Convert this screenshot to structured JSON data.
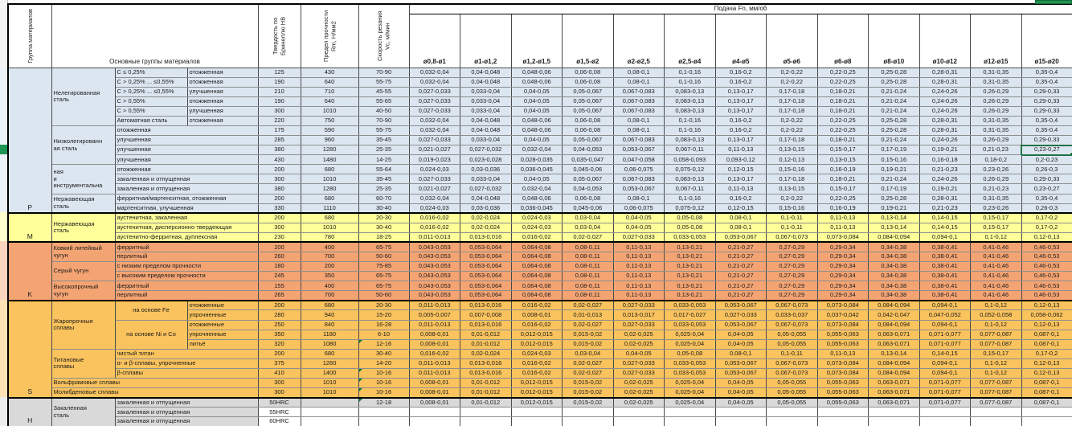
{
  "header": {
    "group_col": "Группа материалов",
    "materials_col": "Основные группы материалов",
    "hardness_col": "Твердость по Бринеллю HB",
    "strength_col": "Предел прочности Rm, Н/мм2",
    "speed_col": "Скорость резания Vc, м/мин",
    "feed_band": "Подача Fn, мм/об",
    "feed_cols": [
      "ø0,8-ø1",
      "ø1-ø1,2",
      "ø1,2-ø1,5",
      "ø1,5-ø2",
      "ø2-ø2,5",
      "ø2,5-ø4",
      "ø4-ø5",
      "ø5-ø6",
      "ø6-ø8",
      "ø8-ø10",
      "ø10-ø12",
      "ø12-ø15",
      "ø15-ø20"
    ]
  },
  "colors": {
    "selection_green": "#1F7245",
    "marker_green": "#0B7E3E",
    "highlight_green": "#1E9550"
  },
  "section_order": [
    "P",
    "M",
    "K",
    "S",
    "H"
  ],
  "sections": {
    "P": {
      "bg": "#DCE6F1",
      "strip": "#EDF2F9",
      "rows": 15
    },
    "M": {
      "bg": "#FFFF99",
      "strip": "#FFFFCF",
      "rows": 3
    },
    "K": {
      "bg": "#F4A473",
      "strip": "#FAD4BE",
      "rows": 6
    },
    "S": {
      "bg": "#FBC35D",
      "strip": "#FDE3B4",
      "rows": 10
    },
    "H": {
      "bg": "#D9D9D9",
      "strip": "#EDEDED",
      "rows": 3
    }
  },
  "feed_patterns": {
    "A": [
      "0,032-0,04",
      "0,04-0,048",
      "0,048-0,06",
      "0,06-0,08",
      "0,08-0,1",
      "0,1-0,16",
      "0,16-0,2",
      "0,2-0,22",
      "0,22-0,25",
      "0,25-0,28",
      "0,28-0,31",
      "0,31-0,35",
      "0,35-0,4"
    ],
    "B": [
      "0,027-0,033",
      "0,033-0,04",
      "0,04-0,05",
      "0,05-0,067",
      "0,067-0,083",
      "0,083-0,13",
      "0,13-0,17",
      "0,17-0,18",
      "0,18-0,21",
      "0,21-0,24",
      "0,24-0,26",
      "0,26-0,29",
      "0,29-0,33"
    ],
    "C": [
      "0,021-0,027",
      "0,027-0,032",
      "0,032-0,04",
      "0,04-0,053",
      "0,053-0,067",
      "0,067-0,11",
      "0,11-0,13",
      "0,13-0,15",
      "0,15-0,17",
      "0,17-0,19",
      "0,19-0,21",
      "0,21-0,23",
      "0,23-0,27"
    ],
    "D": [
      "0,019-0,023",
      "0,023-0,028",
      "0,028-0,035",
      "0,035-0,047",
      "0,047-0,058",
      "0,058-0,093",
      "0,093-0,12",
      "0,12-0,13",
      "0,13-0,15",
      "0,15-0,16",
      "0,16-0,18",
      "0,18-0,2",
      "0,2-0,23"
    ],
    "E": [
      "0,024-0,03",
      "0,03-0,036",
      "0,036-0,045",
      "0,045-0,06",
      "0,06-0,075",
      "0,075-0,12",
      "0,12-0,15",
      "0,15-0,16",
      "0,16-0,19",
      "0,19-0,21",
      "0,21-0,23",
      "0,23-0,26",
      "0,26-0,3"
    ],
    "F": [
      "0,016-0,02",
      "0,02-0,024",
      "0,024-0,03",
      "0,03-0,04",
      "0,04-0,05",
      "0,05-0,08",
      "0,08-0,1",
      "0,1-0,11",
      "0,11-0,13",
      "0,13-0,14",
      "0,14-0,15",
      "0,15-0,17",
      "0,17-0,2"
    ],
    "G": [
      "0,011-0,013",
      "0,013-0,016",
      "0,016-0,02",
      "0,02-0,027",
      "0,027-0,033",
      "0,033-0,053",
      "0,053-0,067",
      "0,067-0,073",
      "0,073-0,084",
      "0,084-0,094",
      "0,094-0,1",
      "0,1-0,12",
      "0,12-0,13"
    ],
    "H": [
      "0,043-0,053",
      "0,053-0,064",
      "0,064-0,08",
      "0,08-0,11",
      "0,11-0,13",
      "0,13-0,21",
      "0,21-0,27",
      "0,27-0,29",
      "0,29-0,34",
      "0,34-0,38",
      "0,38-0,41",
      "0,41-0,46",
      "0,46-0,53"
    ],
    "I": [
      "0,005-0,007",
      "0,007-0,008",
      "0,008-0,01",
      "0,01-0,013",
      "0,013-0,017",
      "0,017-0,027",
      "0,027-0,033",
      "0,033-0,037",
      "0,037-0,042",
      "0,042-0,047",
      "0,047-0,052",
      "0,052-0,058",
      "0,058-0,062"
    ],
    "J": [
      "0,008-0,01",
      "0,01-0,012",
      "0,012-0,015",
      "0,015-0,02",
      "0,02-0,025",
      "0,025-0,04",
      "0,04-0,05",
      "0,05-0,055",
      "0,055-0,063",
      "0,063-0,071",
      "0,071-0,077",
      "0,077-0,087",
      "0,087-0,1"
    ]
  },
  "rows": [
    {
      "s": "P",
      "labels": [
        {
          "t": "Нелегированная\nсталь",
          "rs": 6,
          "cls": "name"
        },
        {
          "t": "C ≤ 0,25%",
          "cls": "sub"
        },
        {
          "t": "отожженная",
          "cls": "sub"
        }
      ],
      "hb": "125",
      "rm": "430",
      "vc": "70-90",
      "fp": "A"
    },
    {
      "labels": [
        {
          "t": "C > 0,25% ... ≤0,55%",
          "cls": "sub"
        },
        {
          "t": "отожженная",
          "cls": "sub"
        }
      ],
      "hb": "190",
      "rm": "640",
      "vc": "55-75",
      "fp": "A"
    },
    {
      "labels": [
        {
          "t": "C > 0,25% ... ≤0,55%",
          "cls": "sub"
        },
        {
          "t": "улучшенная",
          "cls": "sub"
        }
      ],
      "hb": "210",
      "rm": "710",
      "vc": "45-55",
      "fp": "B"
    },
    {
      "labels": [
        {
          "t": "C > 0,55%",
          "cls": "sub"
        },
        {
          "t": "отожженная",
          "cls": "sub"
        }
      ],
      "hb": "190",
      "rm": "640",
      "vc": "55-65",
      "fp": "B"
    },
    {
      "labels": [
        {
          "t": "C > 0,55%",
          "cls": "sub"
        },
        {
          "t": "улучшенная",
          "cls": "sub"
        }
      ],
      "hb": "300",
      "rm": "1010",
      "vc": "40-50",
      "fp": "B"
    },
    {
      "labels": [
        {
          "t": "Автоматная сталь",
          "cls": "sub"
        },
        {
          "t": "отожженная",
          "cls": "sub"
        }
      ],
      "hb": "220",
      "rm": "750",
      "vc": "70-90",
      "fp": "A"
    },
    {
      "labels": [
        {
          "t": "Низколегированн\nая сталь",
          "rs": 4,
          "cls": "name"
        },
        {
          "t": "отожженная",
          "cs": 2,
          "cls": "sub"
        }
      ],
      "hb": "175",
      "rm": "590",
      "vc": "55-75",
      "fp": "A",
      "top": "dark"
    },
    {
      "labels": [
        {
          "t": "улучшенная",
          "cs": 2,
          "cls": "sub"
        }
      ],
      "hb": "285",
      "rm": "960",
      "vc": "35-45",
      "fp": "B"
    },
    {
      "labels": [
        {
          "t": "улучшенная",
          "cs": 2,
          "cls": "sub"
        }
      ],
      "hb": "380",
      "rm": "1280",
      "vc": "25-35",
      "fp": "C",
      "sel": true
    },
    {
      "labels": [
        {
          "t": "улучшенная",
          "cs": 2,
          "cls": "sub"
        }
      ],
      "hb": "430",
      "rm": "1480",
      "vc": "14-25",
      "fp": "D"
    },
    {
      "labels": [
        {
          "t": "ная\nи\nинструментальна",
          "rs": 3,
          "cls": "name"
        },
        {
          "t": "отожженная",
          "cs": 2,
          "cls": "sub"
        }
      ],
      "hb": "200",
      "rm": "680",
      "vc": "55-64",
      "fp": "E",
      "top": "dark"
    },
    {
      "labels": [
        {
          "t": "закаленная и отпущенная",
          "cs": 2,
          "cls": "sub"
        }
      ],
      "hb": "300",
      "rm": "1010",
      "vc": "35-45",
      "fp": "B"
    },
    {
      "labels": [
        {
          "t": "закаленная и отпущенная",
          "cs": 2,
          "cls": "sub"
        }
      ],
      "hb": "380",
      "rm": "1280",
      "vc": "25-35",
      "fp": "C"
    },
    {
      "labels": [
        {
          "t": "Нержавеющая\nсталь",
          "rs": 2,
          "cls": "name"
        },
        {
          "t": "ферритная/мартенситная, отожженная",
          "cs": 2,
          "cls": "sub"
        }
      ],
      "hb": "200",
      "rm": "680",
      "vc": "60-70",
      "fp": "A",
      "top": "dark"
    },
    {
      "labels": [
        {
          "t": "мартенситная, улучшенная",
          "cs": 2,
          "cls": "sub"
        }
      ],
      "hb": "330",
      "rm": "1110",
      "vc": "30-40",
      "fp": "E"
    },
    {
      "s": "M",
      "labels": [
        {
          "t": "Нержавеющая\nсталь",
          "rs": 3,
          "cls": "name"
        },
        {
          "t": "аустенитная, закаленная",
          "cs": 2,
          "cls": "sub"
        }
      ],
      "hb": "200",
      "rm": "680",
      "vc": "20-30",
      "fp": "F",
      "top": "thick"
    },
    {
      "labels": [
        {
          "t": "аустенитная, дисперсионно твердеющая",
          "cs": 2,
          "cls": "sub"
        }
      ],
      "hb": "300",
      "rm": "1010",
      "vc": "30-40",
      "fp": "F"
    },
    {
      "labels": [
        {
          "t": "аустенитно-ферритная, дуплексная",
          "cs": 2,
          "cls": "sub"
        }
      ],
      "hb": "230",
      "rm": "780",
      "vc": "18-25",
      "fp": "G"
    },
    {
      "s": "K",
      "labels": [
        {
          "t": "Ковкий литейный\nчугун",
          "rs": 2,
          "cls": "name"
        },
        {
          "t": "ферритный",
          "cs": 2,
          "cls": "sub"
        }
      ],
      "hb": "200",
      "rm": "400",
      "vc": "65-75",
      "fp": "H",
      "top": "thick"
    },
    {
      "labels": [
        {
          "t": "перлитный",
          "cs": 2,
          "cls": "sub"
        }
      ],
      "hb": "260",
      "rm": "700",
      "vc": "50-60",
      "fp": "H"
    },
    {
      "labels": [
        {
          "t": "Серый чугун",
          "rs": 2,
          "cls": "name"
        },
        {
          "t": "с низким пределом прочности",
          "cs": 2,
          "cls": "sub"
        }
      ],
      "hb": "180",
      "rm": "200",
      "vc": "75-85",
      "fp": "H",
      "top": "dark"
    },
    {
      "labels": [
        {
          "t": "с высоким пределом прочности",
          "cs": 2,
          "cls": "sub"
        }
      ],
      "hb": "245",
      "rm": "350",
      "vc": "65-75",
      "fp": "H"
    },
    {
      "labels": [
        {
          "t": "Высокопрочный\nчугун",
          "rs": 2,
          "cls": "name"
        },
        {
          "t": "ферритный",
          "cs": 2,
          "cls": "sub"
        }
      ],
      "hb": "155",
      "rm": "400",
      "vc": "65-75",
      "fp": "H",
      "top": "dark"
    },
    {
      "labels": [
        {
          "t": "перлитный",
          "cs": 2,
          "cls": "sub"
        }
      ],
      "hb": "265",
      "rm": "700",
      "vc": "50-60",
      "fp": "H"
    },
    {
      "s": "S",
      "labels": [
        {
          "t": "Жаропрочные\nсплавы",
          "rs": 5,
          "cls": "name"
        },
        {
          "t": "на основе Fe",
          "rs": 2,
          "cls": "subc"
        },
        {
          "t": "отожженные",
          "cls": "sub"
        }
      ],
      "hb": "200",
      "rm": "680",
      "vc": "20-30",
      "fp": "G",
      "top": "thick"
    },
    {
      "labels": [
        {
          "t": "упрочненные",
          "cls": "sub"
        }
      ],
      "hb": "280",
      "rm": "940",
      "vc": "15-20",
      "fp": "I"
    },
    {
      "labels": [
        {
          "t": "на основе Ni и Co",
          "rs": 3,
          "cls": "subc"
        },
        {
          "t": "отожженные",
          "cls": "sub"
        }
      ],
      "hb": "250",
      "rm": "840",
      "vc": "16-28",
      "fp": "G",
      "top": "dark"
    },
    {
      "labels": [
        {
          "t": "упрочненные",
          "cls": "sub"
        }
      ],
      "hb": "350",
      "rm": "1180",
      "vc": "6-10",
      "fp": "J"
    },
    {
      "labels": [
        {
          "t": "литьё",
          "cls": "sub"
        }
      ],
      "hb": "320",
      "rm": "1080",
      "vc": "12-16",
      "fp": "J",
      "mark": true
    },
    {
      "labels": [
        {
          "t": "Титановые\nсплавы",
          "rs": 3,
          "cls": "name"
        },
        {
          "t": "чистый титан",
          "cs": 2,
          "cls": "sub"
        }
      ],
      "hb": "200",
      "rm": "680",
      "vc": "30-40",
      "fp": "F",
      "top": "dark"
    },
    {
      "labels": [
        {
          "t": "α- и β-сплавы, упрочненные",
          "cs": 2,
          "cls": "sub"
        }
      ],
      "hb": "375",
      "rm": "1260",
      "vc": "14-20",
      "fp": "G"
    },
    {
      "labels": [
        {
          "t": "β-сплавы",
          "cs": 2,
          "cls": "sub"
        }
      ],
      "hb": "410",
      "rm": "1400",
      "vc": "10-16",
      "fp": "G",
      "mark": true
    },
    {
      "labels": [
        {
          "t": "Вольфрамовые сплавы",
          "cs": 3,
          "cls": "name"
        }
      ],
      "hb": "300",
      "rm": "1010",
      "vc": "10-16",
      "fp": "J",
      "mark": true,
      "top": "dark"
    },
    {
      "labels": [
        {
          "t": "Молибденовые сплавы",
          "cs": 3,
          "cls": "name"
        }
      ],
      "hb": "300",
      "rm": "1010",
      "vc": "10-16",
      "fp": "J",
      "mark": true,
      "top": "dark"
    },
    {
      "s": "H",
      "labels": [
        {
          "t": "Закаленная\nсталь",
          "rs": 3,
          "cls": "name"
        },
        {
          "t": "закаленная и отпущенная",
          "cs": 2,
          "cls": "sub"
        }
      ],
      "hb": "50HRC",
      "rm": "",
      "vc": "12-18",
      "fp": "J",
      "mark": true,
      "top": "thick"
    },
    {
      "labels": [
        {
          "t": "закаленная и отпущенная",
          "cs": 2,
          "cls": "sub"
        }
      ],
      "hb": "55HRC",
      "rm": "",
      "vc": "",
      "fp": null,
      "bg": "#FFFFFF"
    },
    {
      "labels": [
        {
          "t": "закаленная и отпущенная",
          "cs": 2,
          "cls": "sub"
        }
      ],
      "hb": "60HRC",
      "rm": "",
      "vc": "",
      "fp": null,
      "bg": "#FFFFFF"
    }
  ]
}
